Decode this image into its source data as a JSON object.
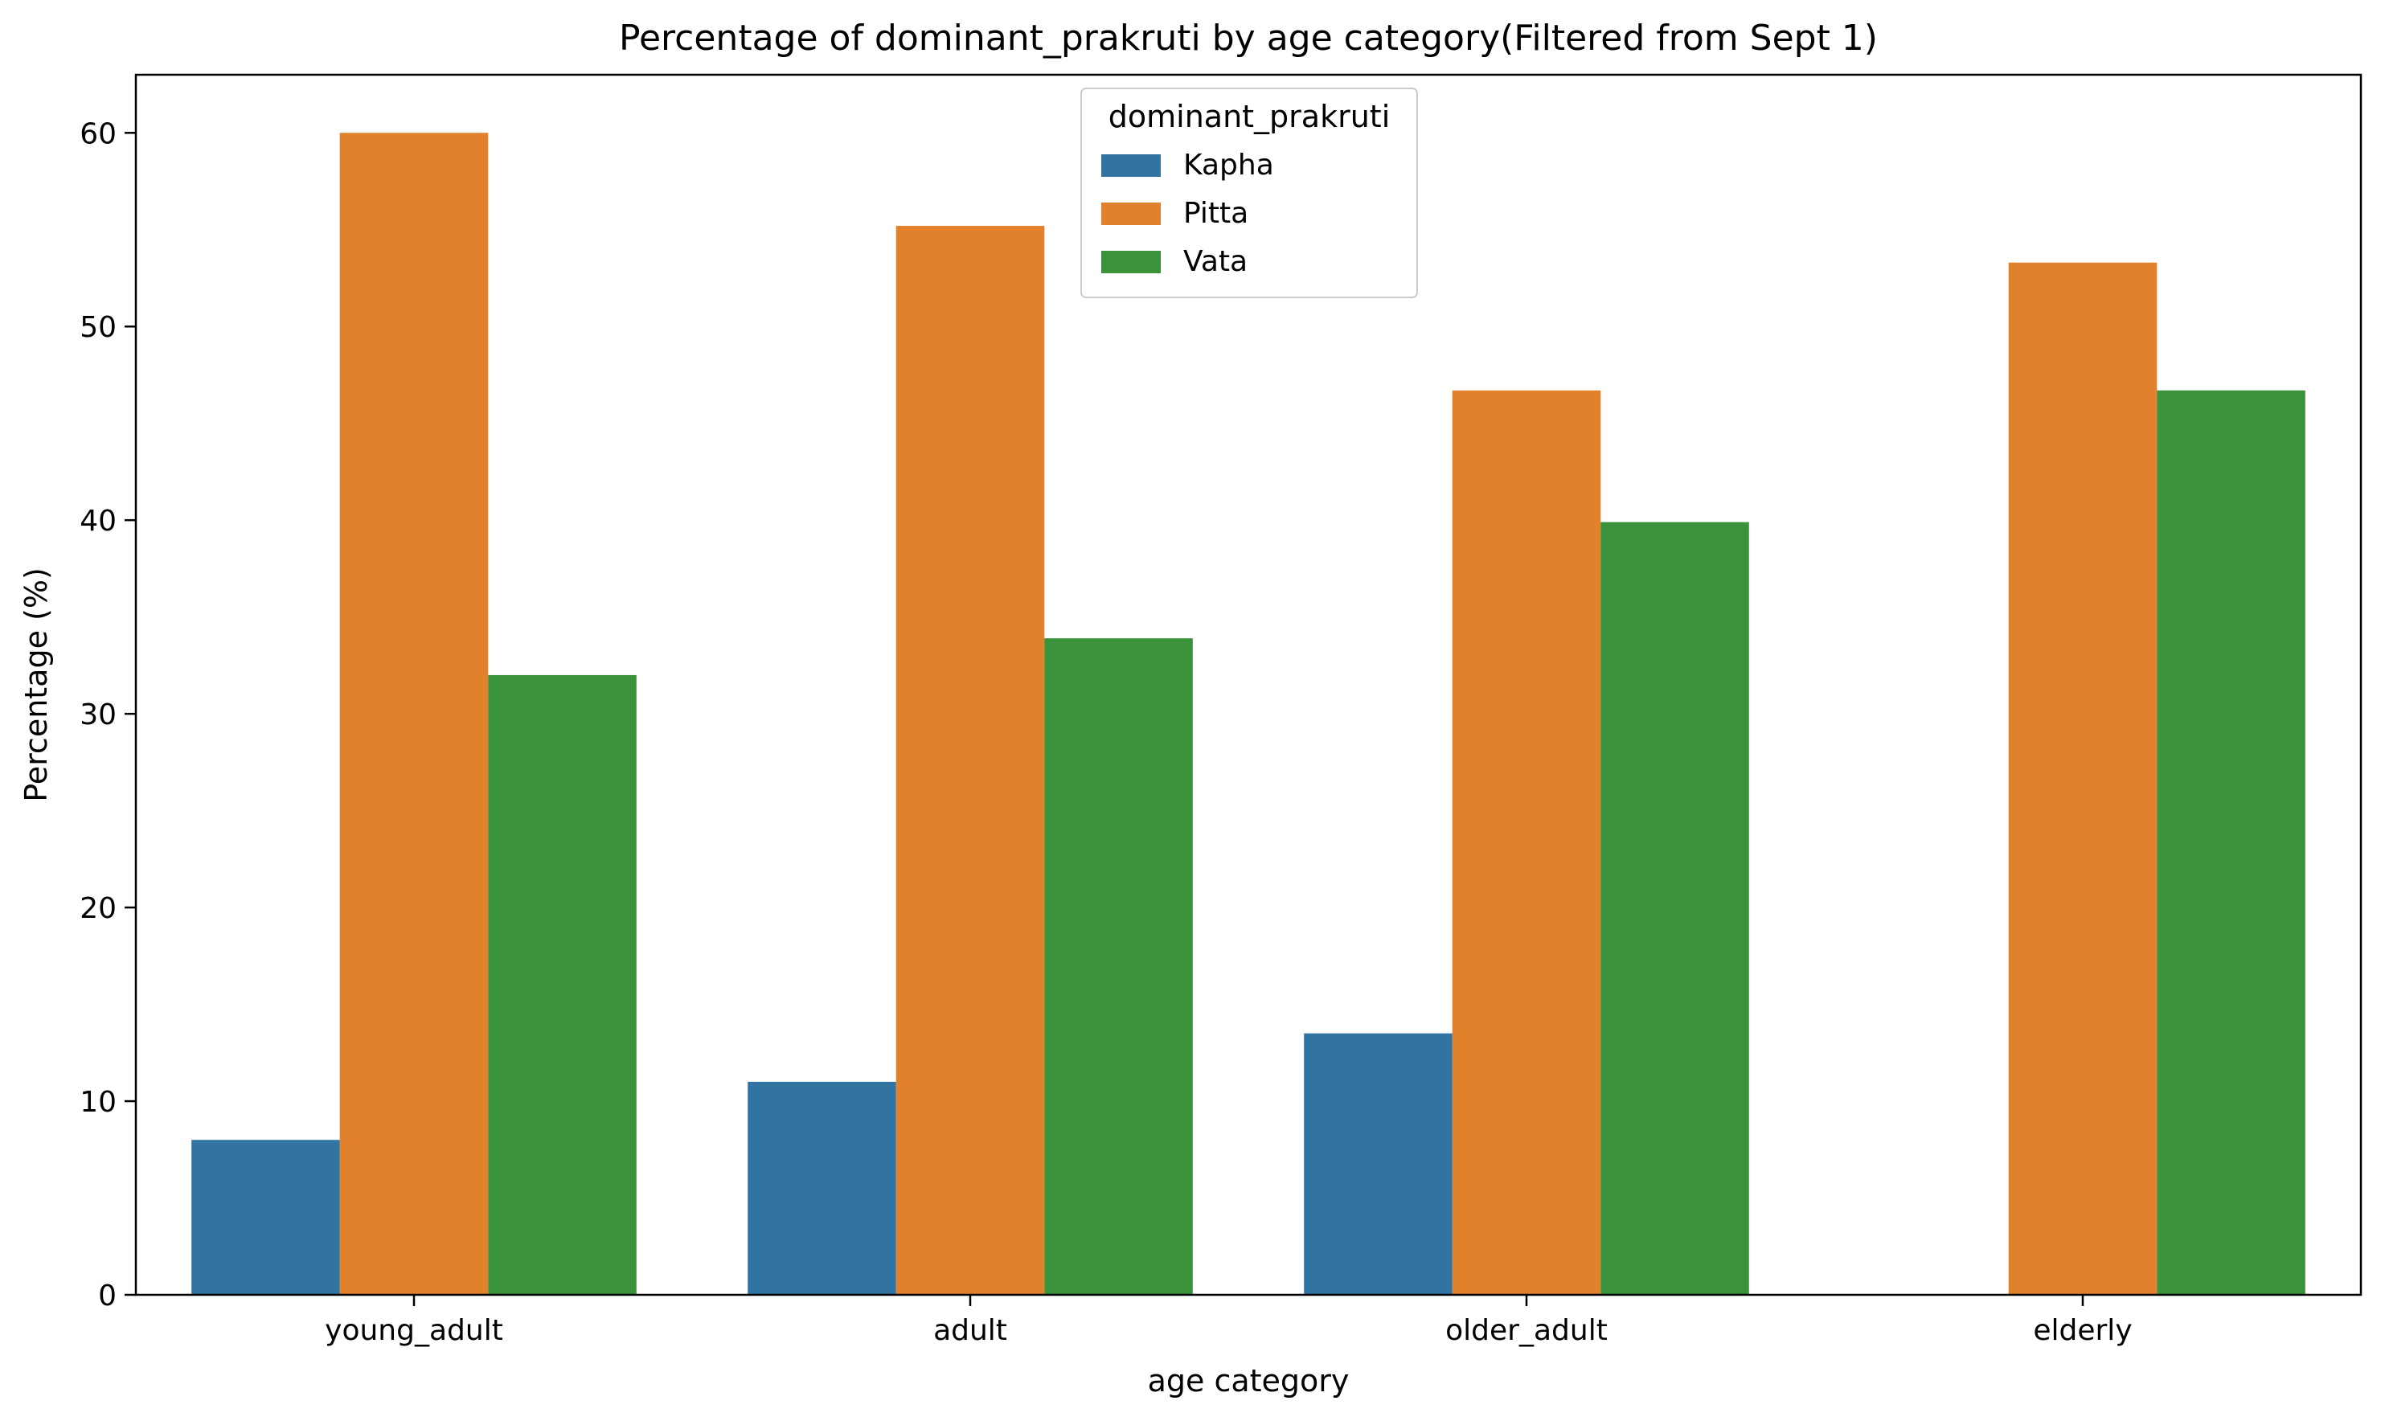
{
  "chart_data": {
    "type": "bar",
    "title": "Percentage of dominant_prakruti by age category(Filtered from Sept 1)",
    "xlabel": "age category",
    "ylabel": "Percentage (%)",
    "ylim": [
      0,
      63
    ],
    "yticks": [
      0,
      10,
      20,
      30,
      40,
      50,
      60
    ],
    "categories": [
      "young_adult",
      "adult",
      "older_adult",
      "elderly"
    ],
    "grid": false,
    "legend": {
      "title": "dominant_prakruti",
      "placement": "top-center"
    },
    "series": [
      {
        "name": "Kapha",
        "color": "#3274a1",
        "values": [
          8.0,
          11.0,
          13.5,
          0
        ]
      },
      {
        "name": "Pitta",
        "color": "#e1812c",
        "values": [
          60.0,
          55.2,
          46.7,
          53.3
        ]
      },
      {
        "name": "Vata",
        "color": "#3a923a",
        "values": [
          32.0,
          33.9,
          39.9,
          46.7
        ]
      }
    ]
  }
}
